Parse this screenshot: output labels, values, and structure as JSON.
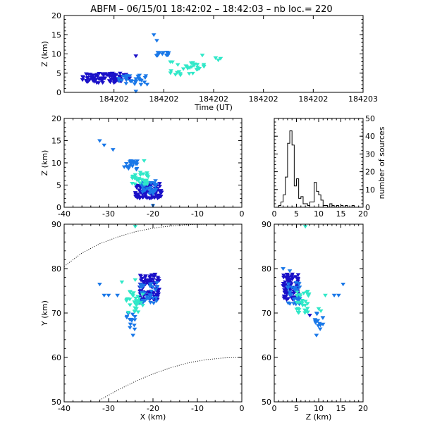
{
  "chart_data": {
    "type": "scatter",
    "title": "ABFM – 06/15/01 18:42:02 – 18:42:03 – nb loc.=     220",
    "colors": {
      "early": "#1a10c8",
      "mid": "#1a78e8",
      "late": "#30e8c8",
      "axis": "#000000"
    },
    "panels": [
      {
        "id": "time-height",
        "type": "scatter",
        "xlabel": "Time (UT)",
        "ylabel": "Z (km)",
        "xlim": [
          0,
          1
        ],
        "ylim": [
          0,
          20
        ],
        "xtick_labels": [
          "184202",
          "184202",
          "184202",
          "184202",
          "184202",
          "184203"
        ],
        "yticks": [
          0,
          5,
          10,
          15,
          20
        ],
        "clusters": [
          {
            "x": [
              0.06,
              0.22
            ],
            "y": [
              2.5,
              5
            ],
            "n": 90,
            "color": "early"
          },
          {
            "x": [
              0.18,
              0.28
            ],
            "y": [
              2,
              4.5
            ],
            "n": 30,
            "color": "mid"
          },
          {
            "x": [
              0.3,
              0.36
            ],
            "y": [
              9.5,
              10.5
            ],
            "n": 14,
            "color": "mid"
          },
          {
            "x": [
              0.35,
              0.47
            ],
            "y": [
              4.5,
              8
            ],
            "n": 30,
            "color": "late"
          },
          {
            "x": [
              0.46,
              0.53
            ],
            "y": [
              7,
              11
            ],
            "n": 4,
            "color": "late"
          }
        ],
        "points": [
          {
            "x": 0.3,
            "y": 15,
            "color": "mid"
          },
          {
            "x": 0.31,
            "y": 13.5,
            "color": "mid"
          },
          {
            "x": 0.24,
            "y": 9.5,
            "color": "early"
          },
          {
            "x": 0.24,
            "y": 0.3,
            "color": "mid"
          }
        ]
      },
      {
        "id": "x-z",
        "type": "scatter",
        "xlabel": "",
        "ylabel": "Z (km)",
        "xlim": [
          -40,
          0
        ],
        "ylim": [
          0,
          20
        ],
        "xticks": [
          -40,
          -30,
          -20,
          -10,
          0
        ],
        "yticks": [
          0,
          5,
          10,
          15,
          20
        ],
        "clusters": [
          {
            "x": [
              -24,
              -18
            ],
            "y": [
              2,
              5.5
            ],
            "n": 90,
            "color": "early"
          },
          {
            "x": [
              -23,
              -19
            ],
            "y": [
              3,
              6
            ],
            "n": 30,
            "color": "mid"
          },
          {
            "x": [
              -26.5,
              -23.5
            ],
            "y": [
              8.5,
              10.5
            ],
            "n": 20,
            "color": "mid"
          },
          {
            "x": [
              -25,
              -21
            ],
            "y": [
              5,
              8
            ],
            "n": 30,
            "color": "late"
          }
        ],
        "points": [
          {
            "x": -32,
            "y": 15,
            "color": "mid"
          },
          {
            "x": -31,
            "y": 14,
            "color": "mid"
          },
          {
            "x": -29,
            "y": 13,
            "color": "mid"
          },
          {
            "x": -22,
            "y": 10.5,
            "color": "late"
          },
          {
            "x": -20,
            "y": 0.4,
            "color": "mid"
          }
        ]
      },
      {
        "id": "histogram",
        "type": "bar",
        "xlabel": "",
        "ylabel": "number of sources",
        "xlim": [
          0,
          20
        ],
        "ylim": [
          0,
          50
        ],
        "xticks": [
          0,
          5,
          10,
          15,
          20
        ],
        "yticks": [
          0,
          10,
          20,
          30,
          40,
          50
        ],
        "bin_width": 0.5,
        "bins_x": [
          1,
          1.5,
          2,
          2.5,
          3,
          3.5,
          4,
          4.5,
          5,
          5.5,
          6,
          6.5,
          7,
          7.5,
          8,
          8.5,
          9,
          9.5,
          10,
          10.5,
          11,
          11.5,
          12,
          12.5,
          13,
          13.5,
          14,
          14.5,
          15,
          15.5,
          16,
          16.5,
          17,
          17.5,
          18,
          18.5,
          19,
          19.5
        ],
        "values": [
          1,
          3,
          7,
          17,
          36,
          43,
          35,
          12,
          16,
          5,
          6,
          2,
          2,
          1,
          3,
          3,
          14,
          9,
          7,
          4,
          1,
          1,
          0,
          2,
          1,
          0,
          1,
          0,
          1,
          0,
          1,
          0,
          0,
          1,
          0,
          0,
          0,
          0
        ]
      },
      {
        "id": "x-y",
        "type": "scatter",
        "xlabel": "X (km)",
        "ylabel": "Y (km)",
        "xlim": [
          -40,
          0
        ],
        "ylim": [
          50,
          90
        ],
        "xticks": [
          -40,
          -30,
          -20,
          -10,
          0
        ],
        "yticks": [
          50,
          60,
          70,
          80,
          90
        ],
        "clusters": [
          {
            "x": [
              -23,
              -18.5
            ],
            "y": [
              73,
              79
            ],
            "n": 90,
            "color": "early"
          },
          {
            "x": [
              -23,
              -19
            ],
            "y": [
              72,
              77
            ],
            "n": 30,
            "color": "mid"
          },
          {
            "x": [
              -26,
              -24
            ],
            "y": [
              66,
              70
            ],
            "n": 14,
            "color": "mid"
          },
          {
            "x": [
              -26,
              -22
            ],
            "y": [
              70,
              75
            ],
            "n": 30,
            "color": "late"
          }
        ],
        "points": [
          {
            "x": -32,
            "y": 76.5,
            "color": "mid"
          },
          {
            "x": -31,
            "y": 74,
            "color": "mid"
          },
          {
            "x": -30,
            "y": 74,
            "color": "mid"
          },
          {
            "x": -28,
            "y": 74,
            "color": "mid"
          },
          {
            "x": -27,
            "y": 77,
            "color": "late"
          },
          {
            "x": -24,
            "y": 77.5,
            "color": "late"
          },
          {
            "x": -24,
            "y": 89.5,
            "color": "late"
          },
          {
            "x": -24.5,
            "y": 65,
            "color": "mid"
          },
          {
            "x": -24,
            "y": 70.5,
            "color": "late"
          }
        ],
        "boundary_curves": [
          {
            "x": [
              -40,
              -36,
              -32,
              -28,
              -24,
              -20,
              -16,
              -12,
              -8,
              -4,
              0
            ],
            "y": [
              80.5,
              83.5,
              85.6,
              87.1,
              88.3,
              89.1,
              89.6,
              89.9,
              90,
              90,
              90
            ]
          },
          {
            "x": [
              -32,
              -28,
              -24,
              -20,
              -16,
              -12,
              -8,
              -4,
              0
            ],
            "y": [
              50.4,
              52.6,
              54.6,
              56.3,
              57.7,
              58.8,
              59.5,
              59.9,
              60
            ]
          }
        ]
      },
      {
        "id": "z-y",
        "type": "scatter",
        "xlabel": "Z (km)",
        "ylabel": "",
        "xlim": [
          0,
          20
        ],
        "ylim": [
          50,
          90
        ],
        "xticks": [
          0,
          5,
          10,
          15,
          20
        ],
        "yticks": [
          50,
          60,
          70,
          80,
          90
        ],
        "clusters": [
          {
            "x": [
              2,
              5.5
            ],
            "y": [
              73,
              79
            ],
            "n": 90,
            "color": "early"
          },
          {
            "x": [
              3,
              6
            ],
            "y": [
              72,
              77
            ],
            "n": 30,
            "color": "mid"
          },
          {
            "x": [
              5,
              8
            ],
            "y": [
              70,
              75
            ],
            "n": 30,
            "color": "late"
          },
          {
            "x": [
              9,
              11
            ],
            "y": [
              66,
              70
            ],
            "n": 14,
            "color": "mid"
          }
        ],
        "points": [
          {
            "x": 2,
            "y": 80,
            "color": "mid"
          },
          {
            "x": 3.5,
            "y": 79.5,
            "color": "mid"
          },
          {
            "x": 15.5,
            "y": 76.5,
            "color": "mid"
          },
          {
            "x": 14.5,
            "y": 74,
            "color": "mid"
          },
          {
            "x": 13.5,
            "y": 74,
            "color": "mid"
          },
          {
            "x": 11.5,
            "y": 74,
            "color": "late"
          },
          {
            "x": 10,
            "y": 71,
            "color": "late"
          },
          {
            "x": 10.5,
            "y": 70.5,
            "color": "late"
          },
          {
            "x": 7,
            "y": 89.5,
            "color": "late"
          },
          {
            "x": 9.5,
            "y": 65,
            "color": "mid"
          },
          {
            "x": 8,
            "y": 69.5,
            "color": "early"
          }
        ]
      }
    ]
  }
}
